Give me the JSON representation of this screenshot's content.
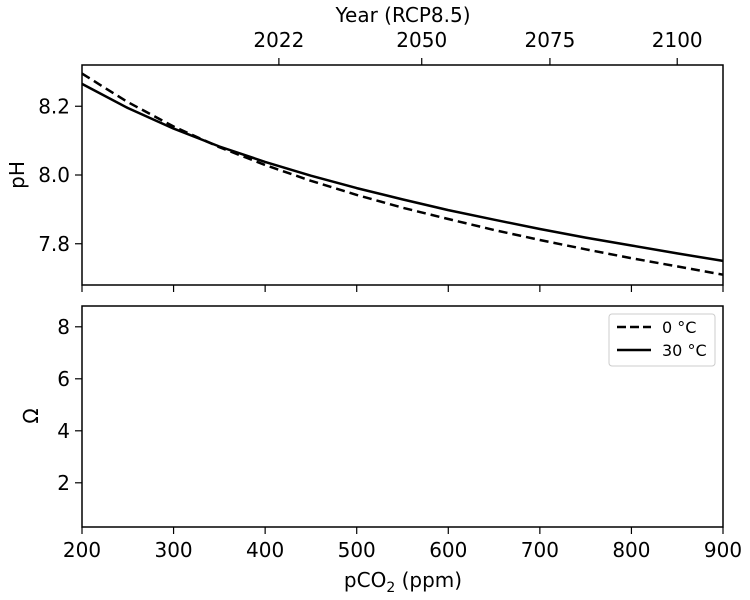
{
  "chart_data": {
    "type": "line",
    "top_x_axis": {
      "label": "Year (RCP8.5)",
      "ticks": [
        {
          "label": "2022",
          "pco2": 415
        },
        {
          "label": "2050",
          "pco2": 571
        },
        {
          "label": "2075",
          "pco2": 711
        },
        {
          "label": "2100",
          "pco2": 850
        }
      ]
    },
    "x_axis": {
      "label_prefix": "pCO",
      "label_sub": "2",
      "label_suffix": " (ppm)",
      "range": [
        200,
        900
      ],
      "ticks": [
        200,
        300,
        400,
        500,
        600,
        700,
        800,
        900
      ]
    },
    "panels": [
      {
        "ylabel": "pH",
        "ylim": [
          7.68,
          8.32
        ],
        "yticks": [
          7.8,
          8.0,
          8.2
        ],
        "yticks_display": [
          "7.8",
          "8.0",
          "8.2"
        ],
        "series": [
          {
            "name": "0 °C",
            "style": "dashed",
            "x": [
              200,
              250,
              300,
              350,
              400,
              450,
              500,
              550,
              600,
              650,
              700,
              750,
              800,
              850,
              900
            ],
            "y": [
              8.295,
              8.212,
              8.141,
              8.081,
              8.029,
              7.983,
              7.942,
              7.905,
              7.872,
              7.84,
              7.811,
              7.784,
              7.758,
              7.734,
              7.71
            ]
          },
          {
            "name": "30 °C",
            "style": "solid",
            "x": [
              200,
              250,
              300,
              350,
              400,
              450,
              500,
              550,
              600,
              650,
              700,
              750,
              800,
              850,
              900
            ],
            "y": [
              8.265,
              8.195,
              8.135,
              8.083,
              8.038,
              7.998,
              7.962,
              7.929,
              7.898,
              7.87,
              7.843,
              7.818,
              7.795,
              7.772,
              7.75
            ]
          }
        ]
      },
      {
        "ylabel": "Ω",
        "ylim": [
          0.3,
          8.8
        ],
        "yticks": [
          2,
          4,
          6,
          8
        ],
        "yticks_display": [
          "2",
          "4",
          "6",
          "8"
        ],
        "series": []
      }
    ],
    "legend": {
      "location": "upper-right of lower panel",
      "entries": [
        {
          "label": "0 °C",
          "style": "dashed"
        },
        {
          "label": "30 °C",
          "style": "solid"
        }
      ]
    },
    "colors": {
      "lines": "#000000",
      "axes": "#000000",
      "legend_border": "#cccccc",
      "background": "#ffffff"
    },
    "grid": false
  }
}
